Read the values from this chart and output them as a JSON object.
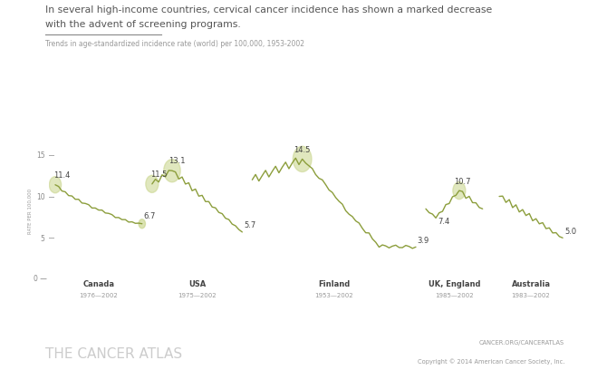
{
  "title_line1": "In several high-income countries, cervical cancer incidence has shown a marked decrease",
  "title_line2": "with the advent of screening programs.",
  "subtitle": "Trends in age-standardized incidence rate (world) per 100,000, 1953-2002",
  "ylabel": "RATE PER 100,000",
  "footer_left": "THE CANCER ATLAS",
  "footer_right_line1": "CANCER.ORG/CANCERATLAS",
  "footer_right_line2": "Copyright © 2014 American Cancer Society, Inc.",
  "line_color": "#8c9e3c",
  "circle_color": "#c8d48a",
  "circle_alpha": 0.55,
  "bg_color": "#ffffff",
  "text_color": "#555555",
  "axis_color": "#aaaaaa",
  "yticks": [
    5,
    10,
    15
  ],
  "ylim": [
    0,
    16.5
  ],
  "xlim": [
    -2,
    158
  ]
}
